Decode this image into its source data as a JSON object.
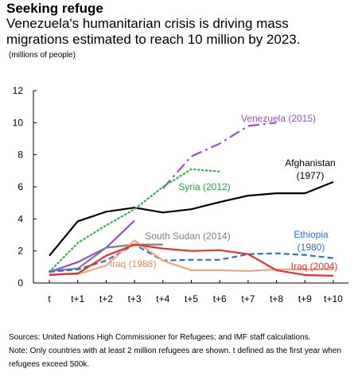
{
  "title": "Seeking refuge",
  "subtitle": "Venezuela's humanitarian crisis is driving mass migrations estimated to reach 10 million by 2023.",
  "units": "(millions of people)",
  "chart_data": {
    "type": "line",
    "categories": [
      "t",
      "t+1",
      "t+2",
      "t+3",
      "t+4",
      "t+5",
      "t+6",
      "t+7",
      "t+8",
      "t+9",
      "t+10"
    ],
    "ylim": [
      0,
      12
    ],
    "yticks": [
      0,
      2,
      4,
      6,
      8,
      10,
      12
    ],
    "grid": false,
    "series": [
      {
        "name": "Afghanistan (1977)",
        "label_lines": [
          "Afghanistan",
          "(1977)"
        ],
        "color": "#000000",
        "dash": "solid",
        "values": [
          1.7,
          3.85,
          4.45,
          4.7,
          4.4,
          4.6,
          5.05,
          5.45,
          5.6,
          5.6,
          6.3
        ]
      },
      {
        "name": "Venezuela (2015)",
        "label_lines": [
          "Venezuela (2015)"
        ],
        "color": "#9b4dca",
        "dash": "dashdot",
        "values": [
          0.7,
          1.3,
          2.2,
          3.9,
          5.9,
          7.9,
          8.7,
          9.8,
          10.0,
          null,
          null
        ],
        "solid_until": 3
      },
      {
        "name": "Syria (2012)",
        "label_lines": [
          "Syria (2012)"
        ],
        "color": "#2db34a",
        "dash": "dotted",
        "values": [
          0.7,
          2.5,
          3.6,
          4.6,
          6.0,
          7.1,
          6.95,
          null,
          null,
          null,
          null
        ]
      },
      {
        "name": "South Sudan (2014)",
        "label_lines": [
          "South Sudan (2014)"
        ],
        "color": "#7f7f7f",
        "dash": "solid",
        "values": [
          0.75,
          0.9,
          2.2,
          2.4,
          2.4,
          null,
          null,
          null,
          null,
          null,
          null
        ]
      },
      {
        "name": "Ethiopia (1980)",
        "label_lines": [
          "Ethiopia",
          "(1980)"
        ],
        "color": "#2e6fd1",
        "dash": "dashed",
        "values": [
          0.7,
          0.85,
          1.4,
          2.4,
          1.4,
          1.45,
          1.45,
          1.8,
          1.85,
          1.75,
          1.55
        ]
      },
      {
        "name": "Iraq (1988)",
        "label_lines": [
          "Iraq (1988)"
        ],
        "color": "#f4a582",
        "dash": "solid",
        "values": [
          0.55,
          0.55,
          1.1,
          2.65,
          1.4,
          0.8,
          0.8,
          0.75,
          0.85,
          0.85,
          0.85
        ]
      },
      {
        "name": "Iraq (2004)",
        "label_lines": [
          "Iraq (2004)"
        ],
        "color": "#e8302a",
        "dash": "solid",
        "values": [
          0.5,
          0.6,
          1.7,
          2.4,
          2.15,
          2.0,
          2.05,
          1.8,
          0.8,
          0.5,
          0.45
        ]
      }
    ]
  },
  "notes": [
    "Sources: United Nations High Commissioner for Refugees; and IMF staff calculations.",
    "Note: Only countries with at least 2 million refugees are shown. t defined as the first year when refugees exceed 500k."
  ]
}
